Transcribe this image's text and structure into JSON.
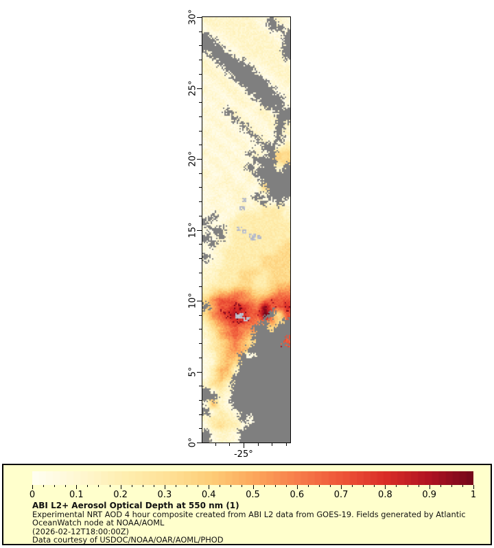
{
  "chart_data": {
    "type": "heatmap",
    "title": "ABI L2+ Aerosol Optical Depth at 550 nm (1)",
    "subtitle": "Experimental NRT AOD 4 hour composite created from ABI L2 data from GOES-19. Fields generated by Atlantic OceanWatch node at NOAA/AOML",
    "timestamp": "(2026-02-12T18:00:00Z)",
    "courtesy": "Data courtesy of USDOC/NOAA/OAR/AOML/PHOD",
    "lat_range": [
      0,
      30
    ],
    "lon_range": [
      -27.9,
      -21.7
    ],
    "lat_ticks": [
      {
        "v": 0,
        "label": "0°"
      },
      {
        "v": 5,
        "label": "5°"
      },
      {
        "v": 10,
        "label": "10°"
      },
      {
        "v": 15,
        "label": "15°"
      },
      {
        "v": 20,
        "label": "20°"
      },
      {
        "v": 25,
        "label": "25°"
      },
      {
        "v": 30,
        "label": "30°"
      }
    ],
    "lon_ticks": [
      {
        "v": -25,
        "label": "-25°"
      }
    ],
    "minor_tick_step_deg": 1,
    "no_data_color": "#7f7f7f",
    "cloud_colors": [
      "#b2b6c4",
      "#c3c7d1"
    ],
    "colormap_stops": [
      [
        0.0,
        "#fffef2"
      ],
      [
        0.1,
        "#fff8d4"
      ],
      [
        0.2,
        "#feefb2"
      ],
      [
        0.3,
        "#fee298"
      ],
      [
        0.4,
        "#fdce78"
      ],
      [
        0.5,
        "#fca85c"
      ],
      [
        0.6,
        "#f77e4b"
      ],
      [
        0.7,
        "#ee5538"
      ],
      [
        0.8,
        "#da2d27"
      ],
      [
        0.9,
        "#b01322"
      ],
      [
        1.0,
        "#720619"
      ]
    ],
    "colorbar": {
      "min": 0,
      "max": 1,
      "major_step": 0.1,
      "minor_step": 0.025,
      "tick_labels": [
        {
          "v": 0.0,
          "label": "0"
        },
        {
          "v": 0.1,
          "label": "0.1"
        },
        {
          "v": 0.2,
          "label": "0.2"
        },
        {
          "v": 0.3,
          "label": "0.3"
        },
        {
          "v": 0.4,
          "label": "0.4"
        },
        {
          "v": 0.5,
          "label": "0.5"
        },
        {
          "v": 0.6,
          "label": "0.6"
        },
        {
          "v": 0.7,
          "label": "0.7"
        },
        {
          "v": 0.8,
          "label": "0.8"
        },
        {
          "v": 0.9,
          "label": "0.9"
        },
        {
          "v": 1.0,
          "label": "1"
        }
      ]
    },
    "value_key": {
      "1": 0.06,
      "2": 0.13,
      "3": 0.22,
      "4": 0.34,
      "5": 0.46,
      "6": 0.58,
      "7": 0.7,
      "8": 0.8,
      "9": 0.9,
      "e": 0.97
    },
    "grid_note": "rows top-to-bottom lat 30 to 0 (0.5 deg each), cols left-to-right lon -27.9 to -21.7, '.'=no data",
    "grid_rows": [
      "222222211.21",
      "122222221..1",
      ".1122222211.",
      "..112222221.",
      "...11222222.",
      "1...1122222.",
      "21....112221",
      "221....11222",
      "1221....1122",
      "11221....112",
      "211221....11",
      "1211221....1",
      "11211221...1",
      "211.211221..",
      "1211.21122..",
      "11211.2112.2",
      "211211.211.2",
      "1211211.21.1",
      "11211211..13",
      "211211.21.44",
      "1211211...44",
      "112112.1..2.",
      "2112112.....",
      "11221121....",
      "121222114...",
      "1121221.1...",
      "12112212.1.1",
      "112112223332",
      "1.1123333332",
      ".11233333333",
      "1..233333333",
      ".1.233333333",
      "1.2233333334",
      "112333333344",
      ".12333334444",
      "122333334444",
      "223334443444",
      "223334433444",
      "233344433455",
      "345566544566",
      "467776656777",
      ".5778876e778",
      "46789877e.47",
      "35678876.64.",
      "2456766..4..",
      "2356765.....",
      "1345654....7",
      "234565......",
      "12455.1.....",
      "12454.......",
      "13552.......",
      "1354........",
      "2442........",
      ".132........",
      "..21........",
      "1521........",
      ".1321.......",
      "23332.1.....",
      "134331......",
      ".1221.......",
      ".1221......."
    ],
    "cloud_patches": [
      {
        "lat": 15.1,
        "lon": -25.3,
        "w": 0.35,
        "h": 0.3
      },
      {
        "lat": 14.9,
        "lon": -24.95,
        "w": 0.3,
        "h": 0.25
      },
      {
        "lat": 14.55,
        "lon": -24.35,
        "w": 0.45,
        "h": 0.45
      },
      {
        "lat": 14.5,
        "lon": -23.9,
        "w": 0.25,
        "h": 0.3
      },
      {
        "lat": 16.55,
        "lon": -25.1,
        "w": 0.3,
        "h": 0.25
      },
      {
        "lat": 17.15,
        "lon": -25.0,
        "w": 0.25,
        "h": 0.2
      },
      {
        "lat": 8.95,
        "lon": -25.3,
        "w": 0.5,
        "h": 0.28
      },
      {
        "lat": 8.7,
        "lon": -24.8,
        "w": 0.4,
        "h": 0.22
      }
    ]
  },
  "legend": {
    "box_bg": "#ffffcc",
    "title": "ABI L2+ Aerosol Optical Depth at 550 nm (1)",
    "subtitle": "Experimental NRT AOD 4 hour composite created from ABI L2 data from GOES-19. Fields generated by Atlantic OceanWatch node at NOAA/AOML",
    "timestamp": "(2026-02-12T18:00:00Z)",
    "courtesy": "Data courtesy of USDOC/NOAA/OAR/AOML/PHOD"
  }
}
